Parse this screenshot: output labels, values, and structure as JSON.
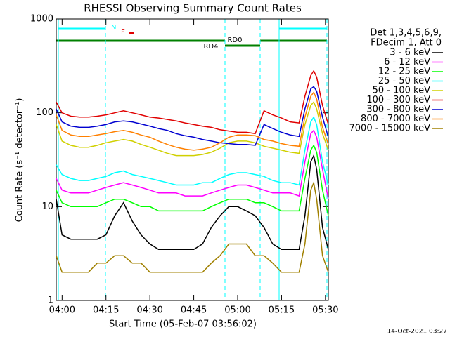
{
  "chart_data": {
    "type": "line",
    "title": "RHESSI Observing Summary Count Rates",
    "x_label": "Start Time (05-Feb-07 03:56:02)",
    "y_label": "Count Rate (s⁻¹ detector⁻¹)",
    "footer": "14-Oct-2021 03:27",
    "legend_header": [
      "Det 1,3,4,5,6,9,",
      "FDecim 1, Att 0"
    ],
    "annotations": {
      "n": "N",
      "f": "F",
      "rd0": "RD0",
      "rd4": "RD4"
    },
    "log_y": true,
    "xlim": [
      "03:58",
      "05:31"
    ],
    "xticks": [
      "04:00",
      "04:15",
      "04:30",
      "04:45",
      "05:00",
      "05:15",
      "05:30"
    ],
    "ylim": [
      1,
      1000
    ],
    "yticks": [
      1,
      10,
      100,
      1000
    ],
    "x": [
      "03:58",
      "04:00",
      "04:03",
      "04:06",
      "04:09",
      "04:12",
      "04:15",
      "04:18",
      "04:21",
      "04:24",
      "04:27",
      "04:30",
      "04:33",
      "04:36",
      "04:39",
      "04:42",
      "04:45",
      "04:48",
      "04:51",
      "04:54",
      "04:57",
      "05:00",
      "05:03",
      "05:06",
      "05:09",
      "05:12",
      "05:15",
      "05:18",
      "05:21",
      "05:23",
      "05:25",
      "05:26",
      "05:27",
      "05:29",
      "05:31"
    ],
    "series": [
      {
        "name": "3 - 6 keV",
        "color": "#000000",
        "values": [
          12,
          5,
          4.5,
          4.5,
          4.5,
          4.5,
          5,
          8,
          11,
          7,
          5,
          4,
          3.5,
          3.5,
          3.5,
          3.5,
          3.5,
          4,
          6,
          8,
          10,
          10,
          9,
          8,
          6,
          4,
          3.5,
          3.5,
          3.5,
          8,
          30,
          35,
          25,
          6,
          3.5
        ]
      },
      {
        "name": "6 - 12 keV",
        "color": "#ff00ff",
        "values": [
          20,
          15,
          14,
          14,
          14,
          15,
          16,
          17,
          18,
          17,
          16,
          15,
          14,
          14,
          14,
          13,
          13,
          13,
          14,
          15,
          16,
          17,
          17,
          16,
          15,
          14,
          14,
          14,
          13,
          30,
          60,
          65,
          55,
          25,
          12
        ]
      },
      {
        "name": "12 - 25 keV",
        "color": "#00ff00",
        "values": [
          15,
          11,
          10,
          10,
          10,
          10,
          11,
          12,
          12,
          11,
          10,
          10,
          9,
          9,
          9,
          9,
          9,
          9,
          10,
          11,
          12,
          12,
          12,
          11,
          11,
          10,
          9,
          9,
          9,
          20,
          40,
          45,
          38,
          15,
          8
        ]
      },
      {
        "name": "25 - 50 keV",
        "color": "#00ffff",
        "values": [
          28,
          22,
          20,
          19,
          19,
          20,
          21,
          23,
          24,
          22,
          21,
          20,
          19,
          18,
          17,
          17,
          17,
          18,
          18,
          20,
          22,
          23,
          23,
          22,
          21,
          19,
          18,
          18,
          17,
          40,
          80,
          90,
          75,
          30,
          17
        ]
      },
      {
        "name": "50 - 100 keV",
        "color": "#d0d000",
        "values": [
          75,
          50,
          45,
          43,
          43,
          45,
          48,
          50,
          52,
          50,
          46,
          43,
          40,
          37,
          35,
          35,
          35,
          36,
          38,
          42,
          48,
          50,
          50,
          48,
          44,
          42,
          40,
          38,
          37,
          75,
          120,
          130,
          110,
          60,
          40
        ]
      },
      {
        "name": "100 - 300 keV",
        "color": "#e00000",
        "values": [
          130,
          100,
          92,
          90,
          90,
          92,
          95,
          100,
          105,
          100,
          95,
          90,
          88,
          85,
          82,
          78,
          75,
          72,
          70,
          66,
          64,
          62,
          62,
          60,
          105,
          95,
          88,
          80,
          78,
          150,
          250,
          280,
          240,
          120,
          75
        ]
      },
      {
        "name": "300 - 800 keV",
        "color": "#0000d0",
        "values": [
          110,
          80,
          72,
          70,
          70,
          72,
          75,
          80,
          82,
          80,
          76,
          72,
          68,
          65,
          60,
          57,
          55,
          52,
          50,
          48,
          47,
          46,
          46,
          45,
          75,
          68,
          62,
          58,
          56,
          110,
          180,
          190,
          170,
          90,
          55
        ]
      },
      {
        "name": "800 - 7000 keV",
        "color": "#ff8000",
        "values": [
          95,
          65,
          58,
          56,
          56,
          58,
          60,
          63,
          65,
          62,
          58,
          55,
          50,
          46,
          43,
          41,
          40,
          41,
          43,
          48,
          55,
          58,
          58,
          57,
          52,
          50,
          47,
          45,
          44,
          90,
          150,
          165,
          140,
          70,
          46
        ]
      },
      {
        "name": "7000 - 15000 keV",
        "color": "#a08000",
        "values": [
          3,
          2,
          2,
          2,
          2,
          2.5,
          2.5,
          3,
          3,
          2.5,
          2.5,
          2,
          2,
          2,
          2,
          2,
          2,
          2,
          2.5,
          3,
          4,
          4,
          4,
          3,
          3,
          2.5,
          2,
          2,
          2,
          4,
          15,
          18,
          12,
          3,
          2
        ]
      }
    ]
  }
}
